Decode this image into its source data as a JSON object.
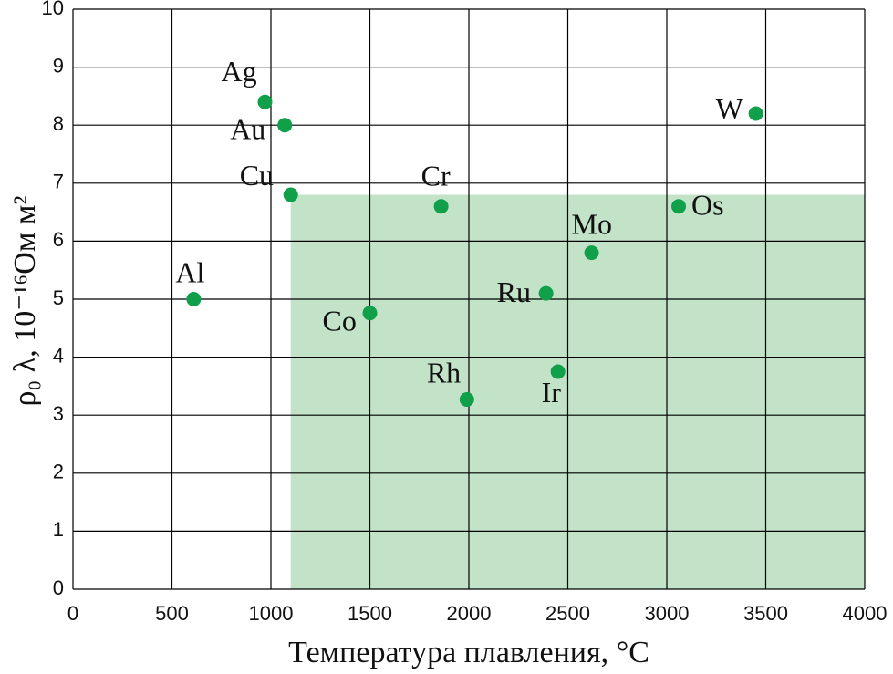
{
  "chart_data": {
    "type": "scatter",
    "x_label": "Температура плавления, °С",
    "y_label": "ρ₀ λ, 10⁻¹⁶Ом м²",
    "labels": [
      "Ag",
      "Au",
      "Cu",
      "Al",
      "Co",
      "Cr",
      "Rh",
      "Ru",
      "Ir",
      "Mo",
      "Os",
      "W"
    ],
    "x": [
      970,
      1070,
      1100,
      610,
      1500,
      1860,
      1990,
      2390,
      2450,
      2620,
      3060,
      3450
    ],
    "values": [
      8.4,
      8.0,
      6.8,
      5.0,
      4.76,
      6.6,
      3.27,
      5.1,
      3.75,
      5.8,
      6.6,
      8.2
    ],
    "color": "#10a04a",
    "shaded_region": {
      "xlim": [
        1100,
        4000
      ],
      "ylim": [
        0,
        6.8
      ],
      "color": "#c2e3c8"
    },
    "xlim": [
      0,
      4000
    ],
    "xticks": [
      0,
      500,
      1000,
      1500,
      2000,
      2500,
      3000,
      3500,
      4000
    ],
    "ylim": [
      0,
      10
    ],
    "yticks": [
      0,
      1,
      2,
      3,
      4,
      5,
      6,
      7,
      8,
      9,
      10
    ],
    "grid": true
  }
}
